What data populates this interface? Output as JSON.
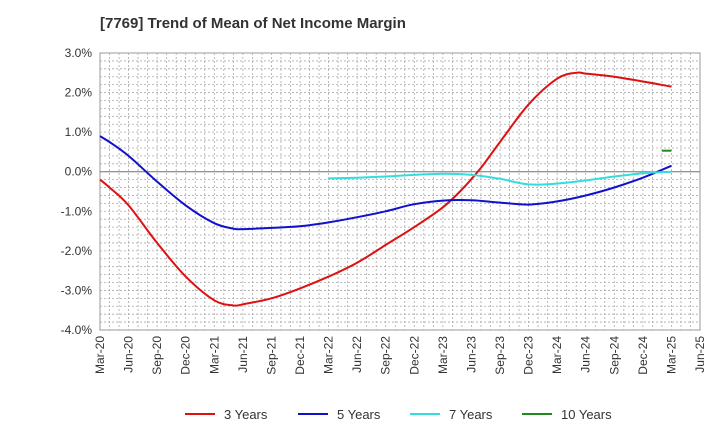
{
  "chart_data": {
    "type": "line",
    "title": "[7769]  Trend of Mean of Net Income Margin",
    "xlabel": "",
    "ylabel": "",
    "y_unit": "%",
    "ylim": [
      -4.0,
      3.0
    ],
    "y_ticks": [
      "3.0%",
      "2.0%",
      "1.0%",
      "0.0%",
      "-1.0%",
      "-2.0%",
      "-3.0%",
      "-4.0%"
    ],
    "y_tick_values": [
      3.0,
      2.0,
      1.0,
      0.0,
      -1.0,
      -2.0,
      -3.0,
      -4.0
    ],
    "x_ticks": [
      "Mar-20",
      "Jun-20",
      "Sep-20",
      "Dec-20",
      "Mar-21",
      "Jun-21",
      "Sep-21",
      "Dec-21",
      "Mar-22",
      "Jun-22",
      "Sep-22",
      "Dec-22",
      "Mar-23",
      "Jun-23",
      "Sep-23",
      "Dec-23",
      "Mar-24",
      "Jun-24",
      "Sep-24",
      "Dec-24",
      "Mar-25",
      "Jun-25"
    ],
    "grid": true,
    "legend_position": "bottom",
    "series": [
      {
        "name": "3 Years",
        "color": "#dd1111",
        "points": [
          [
            "Mar-20",
            -0.2
          ],
          [
            "Apr-20",
            -0.4
          ],
          [
            "Jun-20",
            -0.85
          ],
          [
            "Sep-20",
            -1.8
          ],
          [
            "Dec-20",
            -2.65
          ],
          [
            "Mar-21",
            -3.25
          ],
          [
            "May-21",
            -3.38
          ],
          [
            "Jun-21",
            -3.35
          ],
          [
            "Sep-21",
            -3.2
          ],
          [
            "Dec-21",
            -2.95
          ],
          [
            "Mar-22",
            -2.65
          ],
          [
            "Jun-22",
            -2.3
          ],
          [
            "Sep-22",
            -1.85
          ],
          [
            "Dec-22",
            -1.4
          ],
          [
            "Mar-23",
            -0.9
          ],
          [
            "May-23",
            -0.45
          ],
          [
            "Jul-23",
            0.1
          ],
          [
            "Sep-23",
            0.75
          ],
          [
            "Dec-23",
            1.7
          ],
          [
            "Mar-24",
            2.35
          ],
          [
            "May-24",
            2.5
          ],
          [
            "Jun-24",
            2.48
          ],
          [
            "Sep-24",
            2.4
          ],
          [
            "Dec-24",
            2.28
          ],
          [
            "Mar-25",
            2.15
          ]
        ]
      },
      {
        "name": "5 Years",
        "color": "#1111cc",
        "points": [
          [
            "Mar-20",
            0.9
          ],
          [
            "Apr-20",
            0.75
          ],
          [
            "Jun-20",
            0.4
          ],
          [
            "Sep-20",
            -0.25
          ],
          [
            "Dec-20",
            -0.85
          ],
          [
            "Mar-21",
            -1.3
          ],
          [
            "May-21",
            -1.44
          ],
          [
            "Jun-21",
            -1.45
          ],
          [
            "Sep-21",
            -1.42
          ],
          [
            "Dec-21",
            -1.38
          ],
          [
            "Mar-22",
            -1.28
          ],
          [
            "Jun-22",
            -1.15
          ],
          [
            "Sep-22",
            -1.0
          ],
          [
            "Dec-22",
            -0.82
          ],
          [
            "Mar-23",
            -0.73
          ],
          [
            "Jun-23",
            -0.72
          ],
          [
            "Sep-23",
            -0.78
          ],
          [
            "Dec-23",
            -0.83
          ],
          [
            "Mar-24",
            -0.75
          ],
          [
            "Jun-24",
            -0.6
          ],
          [
            "Sep-24",
            -0.4
          ],
          [
            "Dec-24",
            -0.15
          ],
          [
            "Mar-25",
            0.15
          ]
        ]
      },
      {
        "name": "7 Years",
        "color": "#33dddd",
        "points": [
          [
            "Mar-22",
            -0.17
          ],
          [
            "Jun-22",
            -0.15
          ],
          [
            "Sep-22",
            -0.12
          ],
          [
            "Dec-22",
            -0.08
          ],
          [
            "Mar-23",
            -0.05
          ],
          [
            "Jun-23",
            -0.08
          ],
          [
            "Sep-23",
            -0.18
          ],
          [
            "Dec-23",
            -0.32
          ],
          [
            "Mar-24",
            -0.3
          ],
          [
            "Jun-24",
            -0.22
          ],
          [
            "Sep-24",
            -0.12
          ],
          [
            "Dec-24",
            -0.04
          ],
          [
            "Mar-25",
            0.0
          ]
        ]
      },
      {
        "name": "10 Years",
        "color": "#228822",
        "points": [
          [
            "Feb-25",
            0.53
          ],
          [
            "Mar-25",
            0.53
          ]
        ]
      }
    ]
  }
}
